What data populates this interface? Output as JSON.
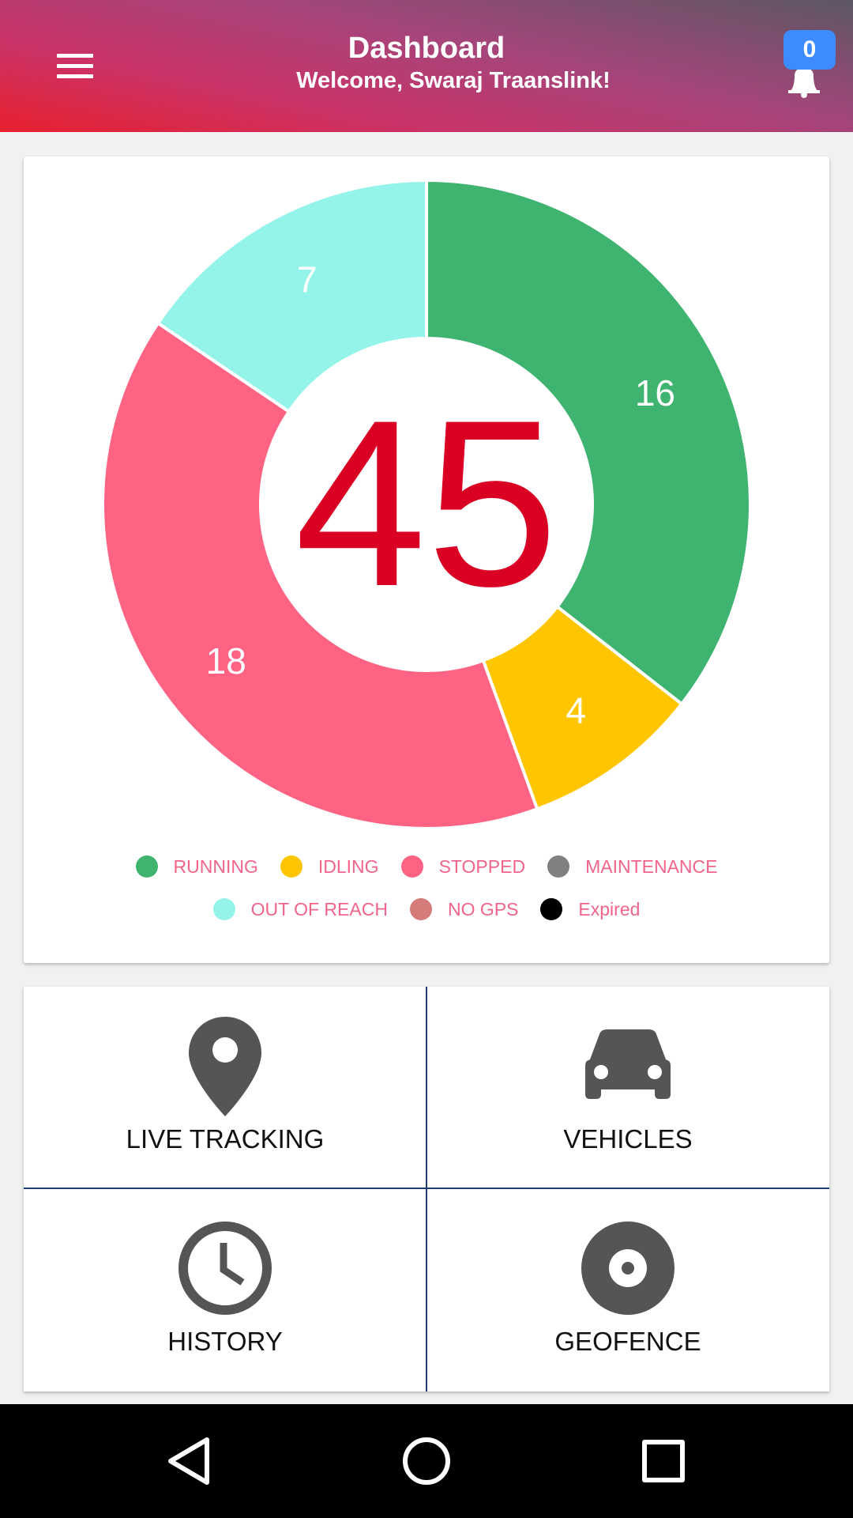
{
  "header": {
    "title": "Dashboard",
    "subtitle": "Welcome, Swaraj Traanslink!",
    "notification_count": "0"
  },
  "icons": {
    "menu": "hamburger-icon",
    "notifications": "bell-icon",
    "live_tracking": "map-pin-icon",
    "vehicles": "car-icon",
    "history": "clock-icon",
    "geofence": "target-icon",
    "nav_back": "triangle-back-icon",
    "nav_home": "circle-home-icon",
    "nav_recents": "square-recents-icon"
  },
  "chart_data": {
    "type": "pie",
    "donut": true,
    "center_total": "45",
    "center_color": "#d90024",
    "slice_label_color": "#ffffff",
    "slices": [
      {
        "label": "RUNNING",
        "value": 16,
        "color": "#3fb470"
      },
      {
        "label": "IDLING",
        "value": 4,
        "color": "#ffc600"
      },
      {
        "label": "STOPPED",
        "value": 18,
        "color": "#ff6383"
      },
      {
        "label": "OUT OF REACH",
        "value": 7,
        "color": "#94f4e9"
      }
    ],
    "legend_placement": "bottom",
    "legend": [
      {
        "label": "RUNNING",
        "color": "#3fb470"
      },
      {
        "label": "IDLING",
        "color": "#ffc600"
      },
      {
        "label": "STOPPED",
        "color": "#ff6383"
      },
      {
        "label": "MAINTENANCE",
        "color": "#808080"
      },
      {
        "label": "OUT OF REACH",
        "color": "#94f4e9"
      },
      {
        "label": "NO GPS",
        "color": "#d57c7b"
      },
      {
        "label": "Expired",
        "color": "#000000"
      }
    ]
  },
  "menu": {
    "live_tracking": "LIVE TRACKING",
    "vehicles": "VEHICLES",
    "history": "HISTORY",
    "geofence": "GEOFENCE"
  }
}
